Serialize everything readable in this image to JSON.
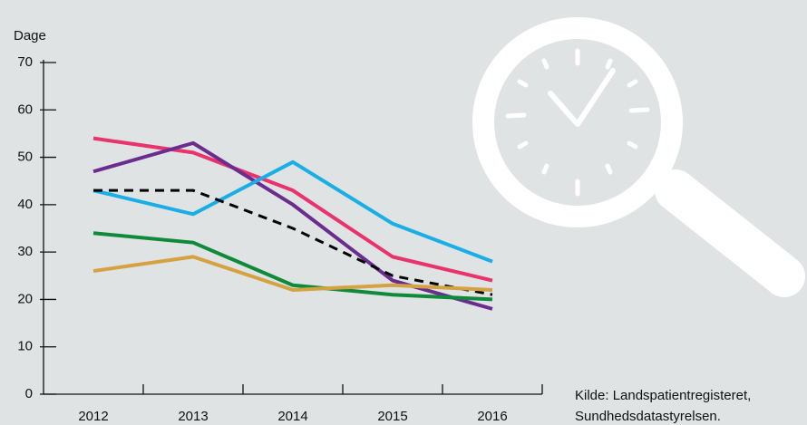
{
  "chart_data": {
    "type": "line",
    "y_label": "Dage",
    "categories": [
      "2012",
      "2013",
      "2014",
      "2015",
      "2016"
    ],
    "series": [
      {
        "color": "#e8336d",
        "values": [
          54,
          51,
          43,
          29,
          24
        ]
      },
      {
        "color": "#6a2c8e",
        "values": [
          47,
          53,
          40,
          24,
          18
        ]
      },
      {
        "color": "#1aaee6",
        "values": [
          43,
          38,
          49,
          36,
          28
        ]
      },
      {
        "color": "#000000",
        "dashed": true,
        "values": [
          43,
          43,
          35,
          25,
          21
        ]
      },
      {
        "color": "#0e8a3a",
        "values": [
          34,
          32,
          23,
          21,
          20
        ]
      },
      {
        "color": "#d4a241",
        "values": [
          26,
          29,
          22,
          23,
          22
        ]
      }
    ],
    "ylim": [
      0,
      70
    ],
    "yticks": [
      0,
      10,
      20,
      30,
      40,
      50,
      60,
      70
    ],
    "source": [
      "Kilde: Landspatientregisteret,",
      "Sundhedsdatastyrelsen."
    ]
  }
}
